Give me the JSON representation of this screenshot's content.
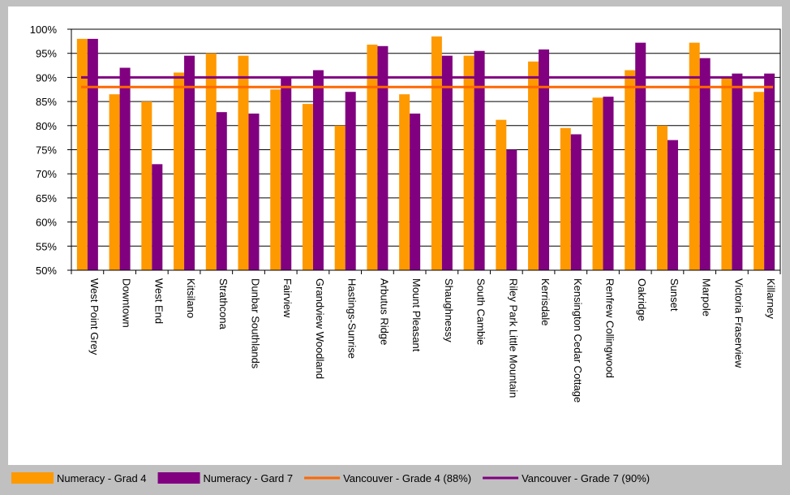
{
  "chart_data": {
    "type": "bar",
    "categories": [
      "West Point Grey",
      "Downtown",
      "West End",
      "Kitsilano",
      "Strathcona",
      "Dunbar Southlands",
      "Fairview",
      "Grandview Woodland",
      "Hastings-Sunrise",
      "Arbutus Ridge",
      "Mount Pleasant",
      "Shaughnessy",
      "South Cambie",
      "Riley Park Little Mountain",
      "Kerrisdale",
      "Kensington Cedar Cottage",
      "Renfrew Collingwood",
      "Oakridge",
      "Sunset",
      "Marpole",
      "Victoria Fraserview",
      "Killarney"
    ],
    "series": [
      {
        "name": "Numeracy - Grad 4",
        "color": "#ff9900",
        "values": [
          98,
          86.5,
          85,
          91,
          95,
          94.5,
          87.5,
          84.5,
          80,
          96.8,
          86.5,
          98.5,
          94.5,
          81.2,
          93.3,
          79.5,
          85.8,
          91.5,
          80,
          97.2,
          90,
          87
        ]
      },
      {
        "name": "Numeracy - Gard 7",
        "color": "#800080",
        "values": [
          98,
          92,
          72,
          94.5,
          82.8,
          82.5,
          90,
          91.5,
          87,
          96.5,
          82.5,
          94.5,
          95.5,
          75,
          95.8,
          78.2,
          86,
          97.2,
          77,
          94,
          90.8,
          90.8
        ]
      }
    ],
    "reference_lines": [
      {
        "name": "Vancouver - Grade 4 (88%)",
        "color": "#ff6600",
        "value": 88
      },
      {
        "name": "Vancouver - Grade 7 (90%)",
        "color": "#800080",
        "value": 90
      }
    ],
    "y_ticks": [
      "50%",
      "55%",
      "60%",
      "65%",
      "70%",
      "75%",
      "80%",
      "85%",
      "90%",
      "95%",
      "100%"
    ],
    "ylim": [
      50,
      100
    ],
    "grid": true,
    "legend_position": "bottom"
  }
}
